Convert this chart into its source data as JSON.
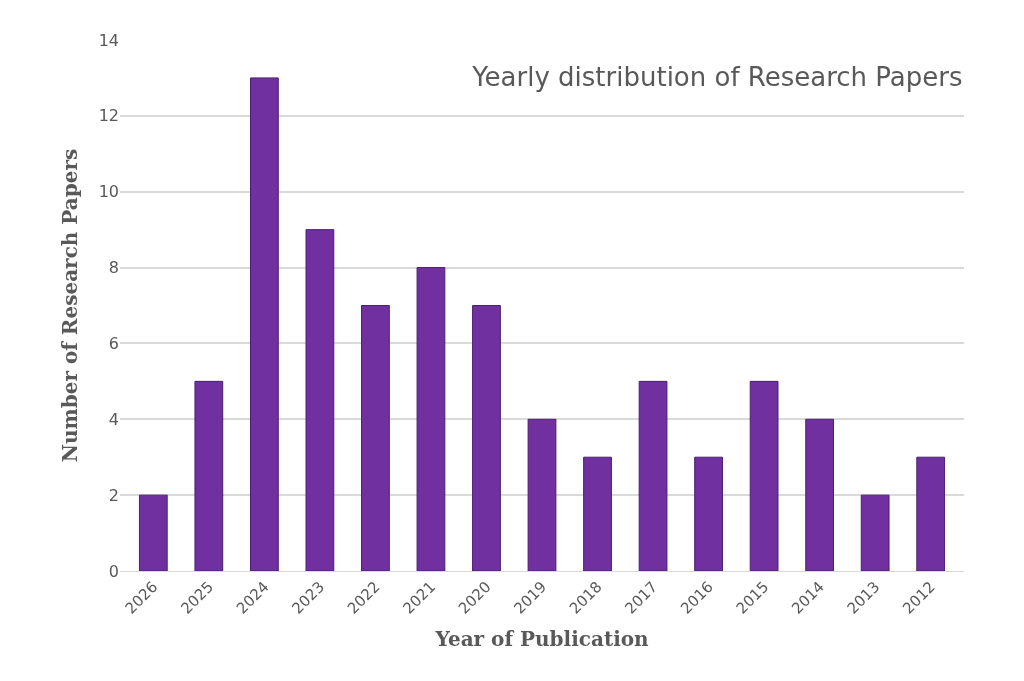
{
  "chart_data": {
    "type": "bar",
    "title": "Yearly distribution of Research Papers",
    "xlabel": "Year of Publication",
    "ylabel": "Number of Research Papers",
    "categories": [
      "2026",
      "2025",
      "2024",
      "2023",
      "2022",
      "2021",
      "2020",
      "2019",
      "2018",
      "2017",
      "2016",
      "2015",
      "2014",
      "2013",
      "2012"
    ],
    "values": [
      2,
      5,
      13,
      9,
      7,
      8,
      7,
      4,
      3,
      5,
      3,
      5,
      4,
      2,
      3
    ],
    "color": "#7030a0",
    "ylim": [
      0,
      14
    ],
    "yticks": [
      0,
      2,
      4,
      6,
      8,
      10,
      12,
      14
    ],
    "grid": "y"
  }
}
